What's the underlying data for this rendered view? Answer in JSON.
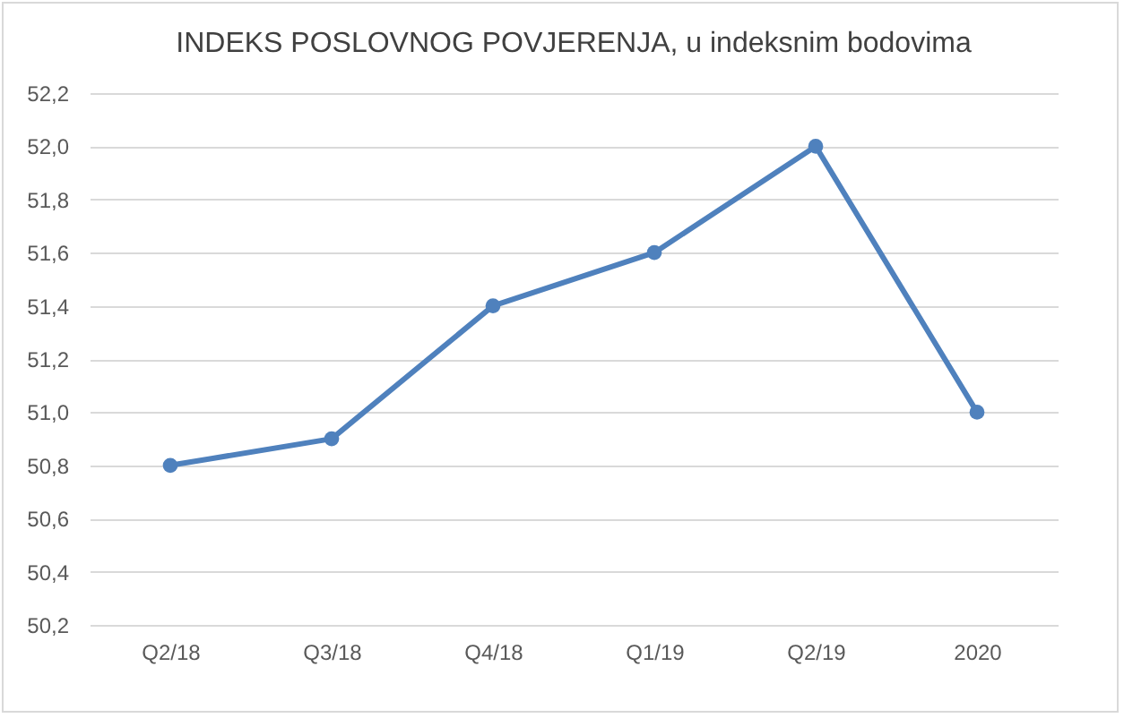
{
  "chart_data": {
    "type": "line",
    "title": "INDEKS POSLOVNOG POVJERENJA, u indeksnim bodovima",
    "categories": [
      "Q2/18",
      "Q3/18",
      "Q4/18",
      "Q1/19",
      "Q2/19",
      "2020"
    ],
    "series": [
      {
        "color": "#4f81bd",
        "values": [
          50.8,
          50.9,
          51.4,
          51.6,
          52.0,
          51.0
        ]
      }
    ],
    "ylim": [
      50.2,
      52.2
    ],
    "yticks": [
      {
        "value": 50.2,
        "label": "50,2"
      },
      {
        "value": 50.4,
        "label": "50,4"
      },
      {
        "value": 50.6,
        "label": "50,6"
      },
      {
        "value": 50.8,
        "label": "50,8"
      },
      {
        "value": 51.0,
        "label": "51,0"
      },
      {
        "value": 51.2,
        "label": "51,2"
      },
      {
        "value": 51.4,
        "label": "51,4"
      },
      {
        "value": 51.6,
        "label": "51,6"
      },
      {
        "value": 51.8,
        "label": "51,8"
      },
      {
        "value": 52.0,
        "label": "52,0"
      },
      {
        "value": 52.2,
        "label": "52,2"
      }
    ],
    "grid": "y",
    "marker": "circle",
    "line_style": "solid",
    "legend": false
  }
}
